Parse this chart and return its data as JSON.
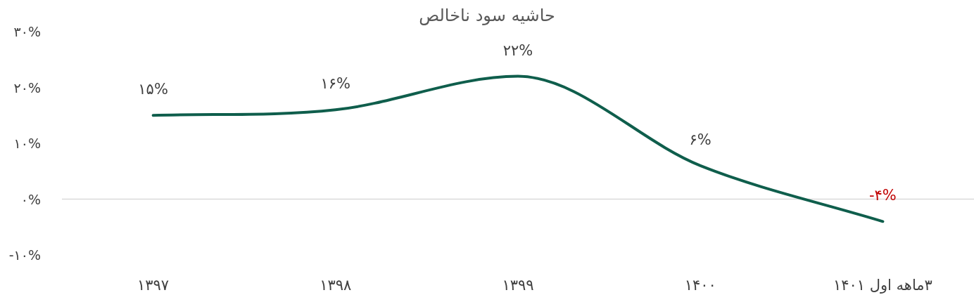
{
  "chart_data": {
    "type": "line",
    "title": "حاشیه سود ناخالص",
    "categories": [
      "۱۳۹۷",
      "۱۳۹۸",
      "۱۳۹۹",
      "۱۴۰۰",
      "۳ماهه اول ۱۴۰۱"
    ],
    "series": [
      {
        "color": "#0f5e4c",
        "values": [
          15,
          16,
          22,
          6,
          -4
        ]
      }
    ],
    "value_labels": [
      "۱۵%",
      "۱۶%",
      "۲۲%",
      "۶%",
      "-۴%"
    ],
    "ylim": [
      -10,
      30
    ],
    "yticks": [
      {
        "value": -10,
        "label": "-۱۰%"
      },
      {
        "value": 0,
        "label": "۰%"
      },
      {
        "value": 10,
        "label": "۱۰%"
      },
      {
        "value": 20,
        "label": "۲۰%"
      },
      {
        "value": 30,
        "label": "۳۰%"
      }
    ],
    "ref_lines": [
      {
        "axis": "y",
        "value": 0,
        "color": "#d9d9d9"
      }
    ],
    "marker": "none",
    "line_style": "solid"
  }
}
